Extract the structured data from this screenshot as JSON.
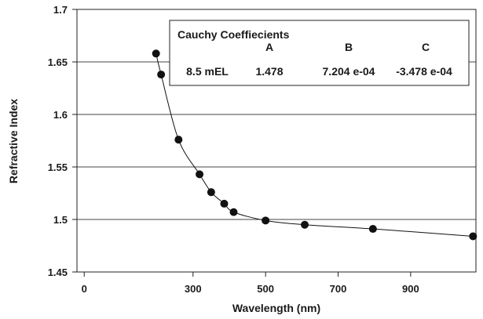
{
  "chart_data": {
    "type": "scatter",
    "xlabel": "Wavelength (nm)",
    "ylabel": "Refractive Index",
    "xlim": [
      -20,
      1080
    ],
    "ylim": [
      1.45,
      1.7
    ],
    "xticks": [
      "0",
      "300",
      "500",
      "700",
      "900"
    ],
    "xtick_values": [
      0,
      300,
      500,
      700,
      900
    ],
    "yticks": [
      "1.45",
      "1.5",
      "1.55",
      "1.6",
      "1.65",
      "1.7"
    ],
    "ytick_values": [
      1.45,
      1.5,
      1.55,
      1.6,
      1.65,
      1.7
    ],
    "grid": "horizontal",
    "marker_color": "#111111",
    "line_color": "#111111",
    "x": [
      198,
      212,
      260,
      318,
      350,
      386,
      412,
      500,
      608,
      796,
      1072
    ],
    "y": [
      1.658,
      1.638,
      1.576,
      1.543,
      1.526,
      1.515,
      1.507,
      1.499,
      1.495,
      1.491,
      1.484
    ],
    "legend": {
      "placement": "top-right",
      "title": "Cauchy Coeffiecients",
      "headers": [
        "",
        "A",
        "B",
        "C"
      ],
      "row": [
        "8.5 mEL",
        "1.478",
        "7.204 e-04",
        "-3.478 e-04"
      ]
    }
  }
}
